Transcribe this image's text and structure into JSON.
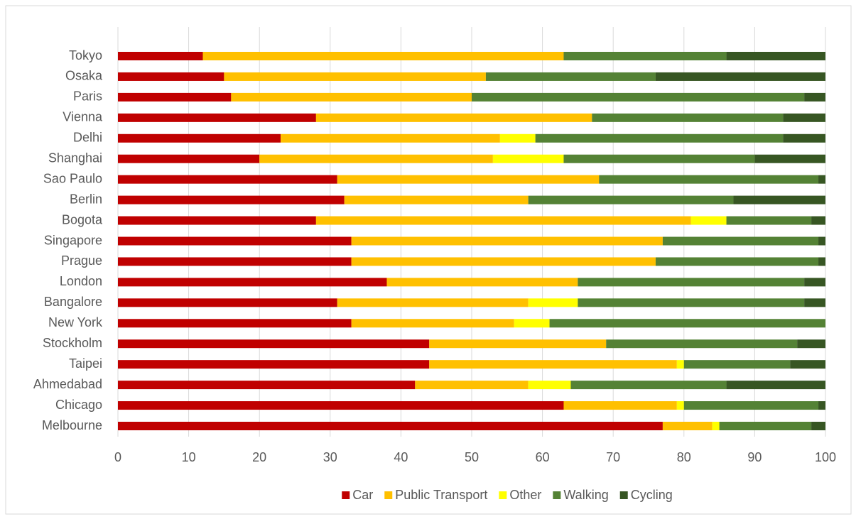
{
  "chart_data": {
    "type": "stacked_bar_horizontal",
    "categories": [
      "Tokyo",
      "Osaka",
      "Paris",
      "Vienna",
      "Delhi",
      "Shanghai",
      "Sao Paulo",
      "Berlin",
      "Bogota",
      "Singapore",
      "Prague",
      "London",
      "Bangalore",
      "New York",
      "Stockholm",
      "Taipei",
      "Ahmedabad",
      "Chicago",
      "Melbourne"
    ],
    "series": [
      {
        "name": "Car",
        "color": "#c00000",
        "values": [
          12,
          15,
          16,
          28,
          23,
          20,
          31,
          32,
          28,
          33,
          33,
          38,
          31,
          33,
          44,
          44,
          42,
          63,
          77
        ]
      },
      {
        "name": "Public Transport",
        "color": "#ffc000",
        "values": [
          51,
          37,
          34,
          39,
          31,
          33,
          37,
          26,
          53,
          44,
          43,
          27,
          27,
          23,
          25,
          35,
          16,
          16,
          7
        ]
      },
      {
        "name": "Other",
        "color": "#ffff00",
        "values": [
          0,
          0,
          0,
          0,
          5,
          10,
          0,
          0,
          5,
          0,
          0,
          0,
          7,
          5,
          0,
          1,
          6,
          1,
          1
        ]
      },
      {
        "name": "Walking",
        "color": "#548235",
        "values": [
          23,
          24,
          47,
          27,
          35,
          27,
          31,
          29,
          12,
          22,
          23,
          32,
          32,
          39,
          27,
          15,
          22,
          19,
          13
        ]
      },
      {
        "name": "Cycling",
        "color": "#375623",
        "values": [
          14,
          24,
          3,
          6,
          6,
          10,
          1,
          13,
          2,
          1,
          1,
          3,
          3,
          0,
          4,
          5,
          14,
          1,
          2
        ]
      }
    ],
    "xlim": [
      0,
      100
    ],
    "xticks": [
      0,
      10,
      20,
      30,
      40,
      50,
      60,
      70,
      80,
      90,
      100
    ],
    "grid": true,
    "legend": "bottom"
  }
}
